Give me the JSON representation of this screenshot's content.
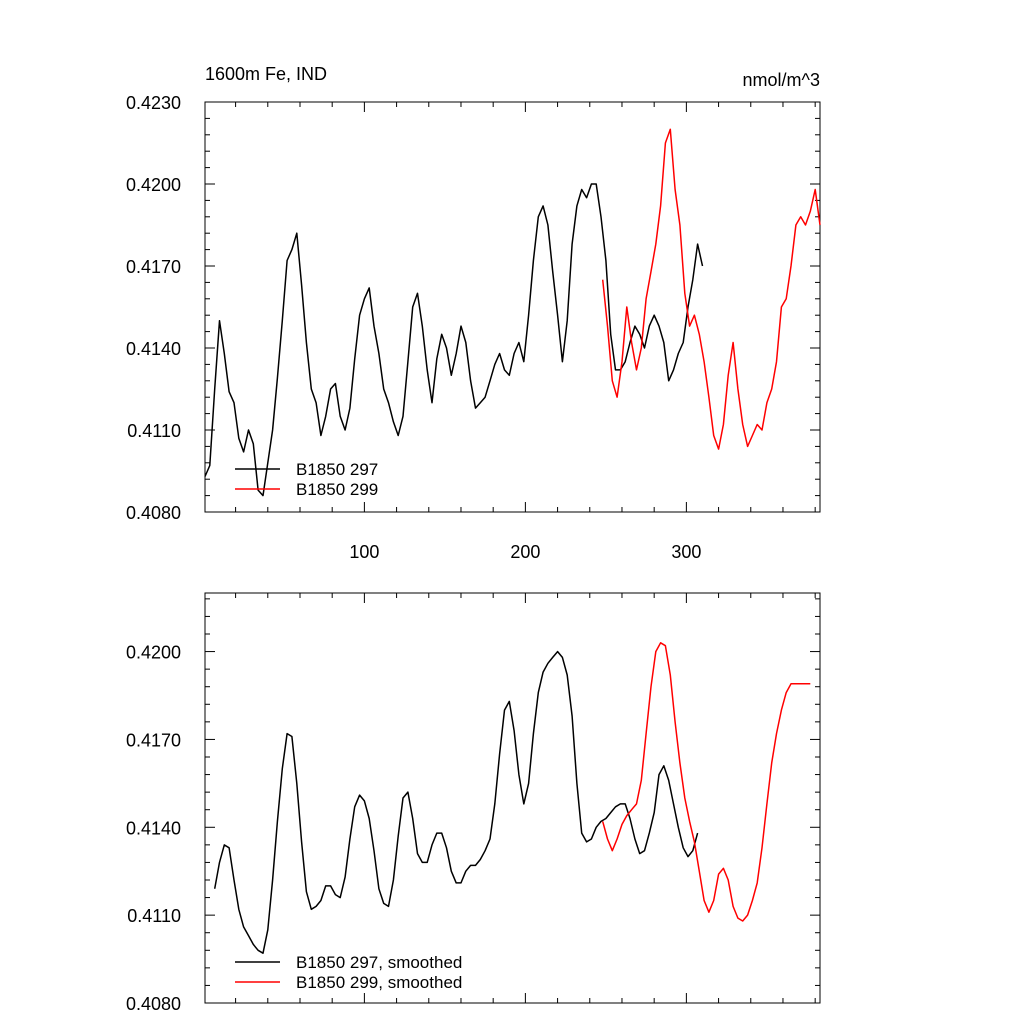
{
  "chart_data": [
    {
      "type": "line",
      "title_left": "1600m Fe, IND",
      "title_right": "nmol/m^3",
      "xlim": [
        1,
        383
      ],
      "ylim": [
        0.408,
        0.423
      ],
      "yticks": [
        0.408,
        0.411,
        0.414,
        0.417,
        0.42,
        0.423
      ],
      "ytick_labels": [
        "0.4080",
        "0.4110",
        "0.4140",
        "0.4170",
        "0.4200",
        "0.4230"
      ],
      "xticks": [
        100,
        200,
        300
      ],
      "xtick_labels": [
        "100",
        "200",
        "300"
      ],
      "legend_position": "bottom-left",
      "series": [
        {
          "name": "B1850 297",
          "color": "#000000",
          "x": [
            1,
            4,
            7,
            10,
            13,
            16,
            19,
            22,
            25,
            28,
            31,
            34,
            37,
            40,
            43,
            46,
            49,
            52,
            55,
            58,
            61,
            64,
            67,
            70,
            73,
            76,
            79,
            82,
            85,
            88,
            91,
            94,
            97,
            100,
            103,
            106,
            109,
            112,
            115,
            118,
            121,
            124,
            127,
            130,
            133,
            136,
            139,
            142,
            145,
            148,
            151,
            154,
            157,
            160,
            163,
            166,
            169,
            172,
            175,
            178,
            181,
            184,
            187,
            190,
            193,
            196,
            199,
            202,
            205,
            208,
            211,
            214,
            217,
            220,
            223,
            226,
            229,
            232,
            235,
            238,
            241,
            244,
            247,
            250,
            253,
            256,
            259,
            262,
            265,
            268,
            271,
            274,
            277,
            280,
            283,
            286,
            289,
            292,
            295,
            298,
            301,
            304,
            307,
            310
          ],
          "values": [
            0.4093,
            0.4097,
            0.4125,
            0.415,
            0.4138,
            0.4124,
            0.412,
            0.4107,
            0.4102,
            0.411,
            0.4105,
            0.4088,
            0.4086,
            0.4098,
            0.411,
            0.4129,
            0.415,
            0.4172,
            0.4176,
            0.4182,
            0.4163,
            0.4142,
            0.4125,
            0.412,
            0.4108,
            0.4115,
            0.4125,
            0.4127,
            0.4115,
            0.411,
            0.4118,
            0.4136,
            0.4152,
            0.4158,
            0.4162,
            0.4148,
            0.4138,
            0.4125,
            0.412,
            0.4113,
            0.4108,
            0.4115,
            0.4135,
            0.4155,
            0.416,
            0.4148,
            0.4132,
            0.412,
            0.4136,
            0.4145,
            0.414,
            0.413,
            0.4138,
            0.4148,
            0.4142,
            0.4128,
            0.4118,
            0.412,
            0.4122,
            0.4128,
            0.4134,
            0.4138,
            0.4132,
            0.413,
            0.4138,
            0.4142,
            0.4135,
            0.4152,
            0.4172,
            0.4188,
            0.4192,
            0.4185,
            0.4168,
            0.4152,
            0.4135,
            0.415,
            0.4178,
            0.4192,
            0.4198,
            0.4195,
            0.42,
            0.42,
            0.4188,
            0.4172,
            0.4145,
            0.4132,
            0.4132,
            0.4135,
            0.4142,
            0.4148,
            0.4145,
            0.414,
            0.4148,
            0.4152,
            0.4148,
            0.4142,
            0.4128,
            0.4132,
            0.4138,
            0.4142,
            0.4155,
            0.4165,
            0.4178,
            0.417
          ]
        },
        {
          "name": "B1850 299",
          "color": "#ff0000",
          "x": [
            248,
            251,
            254,
            257,
            260,
            263,
            266,
            269,
            272,
            275,
            278,
            281,
            284,
            287,
            290,
            293,
            296,
            299,
            302,
            305,
            308,
            311,
            314,
            317,
            320,
            323,
            326,
            329,
            332,
            335,
            338,
            341,
            344,
            347,
            350,
            353,
            356,
            359,
            362,
            365,
            368,
            371,
            374,
            377,
            380,
            383
          ],
          "values": [
            0.4165,
            0.4148,
            0.4128,
            0.4122,
            0.4135,
            0.4155,
            0.4142,
            0.4132,
            0.414,
            0.4158,
            0.4168,
            0.4178,
            0.4192,
            0.4215,
            0.422,
            0.4198,
            0.4185,
            0.416,
            0.4148,
            0.4152,
            0.4145,
            0.4135,
            0.4122,
            0.4108,
            0.4103,
            0.4112,
            0.413,
            0.4142,
            0.4125,
            0.4112,
            0.4104,
            0.4108,
            0.4112,
            0.411,
            0.412,
            0.4125,
            0.4135,
            0.4155,
            0.4158,
            0.417,
            0.4185,
            0.4188,
            0.4185,
            0.419,
            0.4198,
            0.4185
          ]
        }
      ]
    },
    {
      "type": "line",
      "xlim": [
        1,
        383
      ],
      "ylim": [
        0.408,
        0.422
      ],
      "yticks": [
        0.408,
        0.411,
        0.414,
        0.417,
        0.42
      ],
      "ytick_labels": [
        "0.4080",
        "0.4110",
        "0.4140",
        "0.4170",
        "0.4200"
      ],
      "xticks": [
        100,
        200,
        300
      ],
      "legend_position": "bottom-left",
      "series": [
        {
          "name": "B1850 297, smoothed",
          "color": "#000000",
          "x": [
            7,
            10,
            13,
            16,
            19,
            22,
            25,
            28,
            31,
            34,
            37,
            40,
            43,
            46,
            49,
            52,
            55,
            58,
            61,
            64,
            67,
            70,
            73,
            76,
            79,
            82,
            85,
            88,
            91,
            94,
            97,
            100,
            103,
            106,
            109,
            112,
            115,
            118,
            121,
            124,
            127,
            130,
            133,
            136,
            139,
            142,
            145,
            148,
            151,
            154,
            157,
            160,
            163,
            166,
            169,
            172,
            175,
            178,
            181,
            184,
            187,
            190,
            193,
            196,
            199,
            202,
            205,
            208,
            211,
            214,
            217,
            220,
            223,
            226,
            229,
            232,
            235,
            238,
            241,
            244,
            247,
            250,
            253,
            256,
            259,
            262,
            265,
            268,
            271,
            274,
            277,
            280,
            283,
            286,
            289,
            292,
            295,
            298,
            301,
            304,
            307
          ],
          "values": [
            0.4119,
            0.4128,
            0.4134,
            0.4133,
            0.4122,
            0.4112,
            0.4106,
            0.4103,
            0.41,
            0.4098,
            0.4097,
            0.4105,
            0.4122,
            0.4142,
            0.416,
            0.4172,
            0.4171,
            0.4155,
            0.4135,
            0.4118,
            0.4112,
            0.4113,
            0.4115,
            0.412,
            0.412,
            0.4117,
            0.4116,
            0.4123,
            0.4136,
            0.4147,
            0.4151,
            0.4149,
            0.4143,
            0.4132,
            0.4119,
            0.4114,
            0.4113,
            0.4122,
            0.4137,
            0.415,
            0.4152,
            0.4143,
            0.4131,
            0.4128,
            0.4128,
            0.4134,
            0.4138,
            0.4138,
            0.4133,
            0.4125,
            0.4121,
            0.4121,
            0.4125,
            0.4127,
            0.4127,
            0.4129,
            0.4132,
            0.4136,
            0.4148,
            0.4165,
            0.418,
            0.4183,
            0.4173,
            0.4158,
            0.4148,
            0.4155,
            0.4172,
            0.4186,
            0.4193,
            0.4196,
            0.4198,
            0.42,
            0.4198,
            0.4192,
            0.4178,
            0.4155,
            0.4138,
            0.4135,
            0.4136,
            0.414,
            0.4142,
            0.4143,
            0.4145,
            0.4147,
            0.4148,
            0.4148,
            0.4143,
            0.4136,
            0.4131,
            0.4132,
            0.4138,
            0.4145,
            0.4158,
            0.4161,
            0.4156,
            0.4148,
            0.414,
            0.4133,
            0.413,
            0.4132,
            0.4138
          ]
        },
        {
          "name": "B1850 299, smoothed",
          "color": "#ff0000",
          "x": [
            248,
            251,
            254,
            257,
            260,
            263,
            266,
            269,
            272,
            275,
            278,
            281,
            284,
            287,
            290,
            293,
            296,
            299,
            302,
            305,
            308,
            311,
            314,
            317,
            320,
            323,
            326,
            329,
            332,
            335,
            338,
            341,
            344,
            347,
            350,
            353,
            356,
            359,
            362,
            365,
            368,
            371,
            374,
            377
          ],
          "values": [
            0.4142,
            0.4136,
            0.4132,
            0.4136,
            0.4141,
            0.4144,
            0.4146,
            0.4148,
            0.4156,
            0.4172,
            0.4188,
            0.42,
            0.4203,
            0.4202,
            0.4192,
            0.4176,
            0.4162,
            0.415,
            0.4142,
            0.4135,
            0.4125,
            0.4115,
            0.4111,
            0.4115,
            0.4124,
            0.4126,
            0.4122,
            0.4113,
            0.4109,
            0.4108,
            0.411,
            0.4115,
            0.4121,
            0.4133,
            0.4148,
            0.4162,
            0.4172,
            0.418,
            0.4186,
            0.4189,
            0.4189,
            0.4189,
            0.4189,
            0.4189
          ]
        }
      ]
    }
  ]
}
